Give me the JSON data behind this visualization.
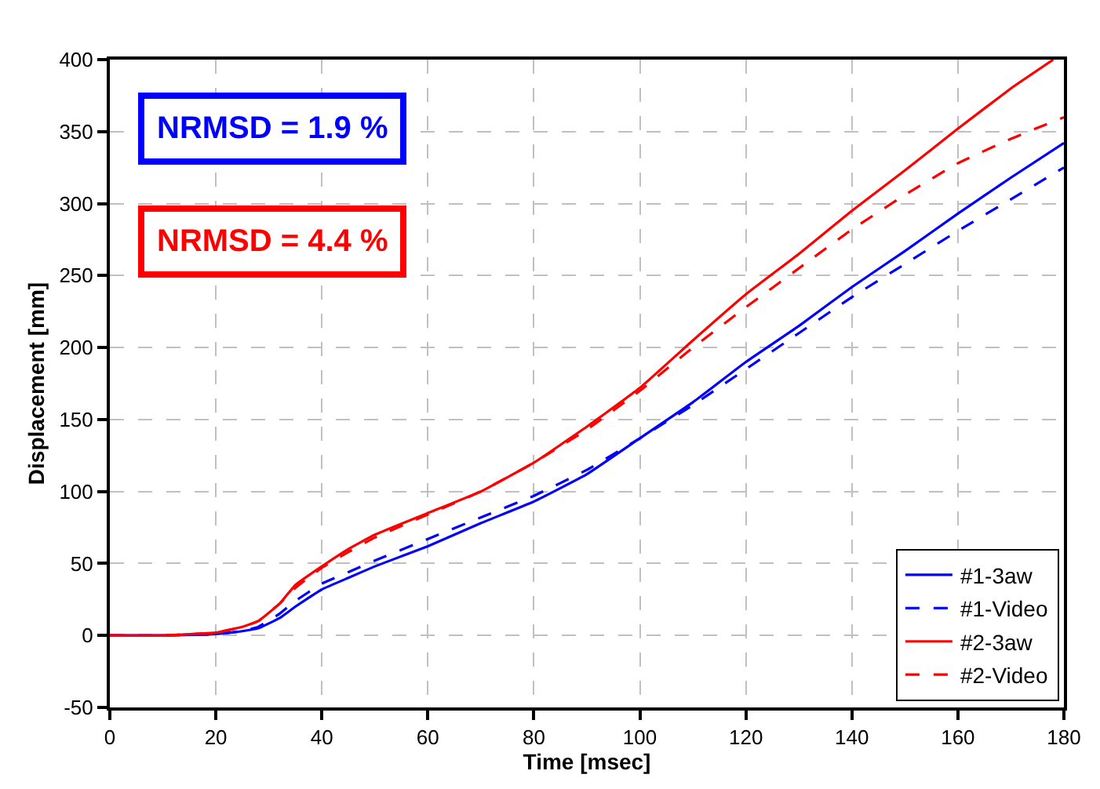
{
  "chart_data": {
    "type": "line",
    "xlabel": "Time [msec]",
    "ylabel": "Displacement [mm]",
    "xlim": [
      0,
      180
    ],
    "xticks": [
      0,
      20,
      40,
      60,
      80,
      100,
      120,
      140,
      160,
      180
    ],
    "ylim": [
      -50,
      400
    ],
    "yticks": [
      -50,
      0,
      50,
      100,
      150,
      200,
      250,
      300,
      350,
      400
    ],
    "grid": true,
    "legend": "bottom right",
    "annotations": [
      "NRMSD = 1.9 %",
      "NRMSD = 4.4 %"
    ],
    "series": [
      {
        "name": "#1-3aw",
        "color": "#0000ff",
        "line_style": "solid",
        "x": [
          0,
          10,
          20,
          25,
          28,
          32,
          35,
          40,
          45,
          50,
          60,
          70,
          80,
          90,
          100,
          110,
          120,
          130,
          140,
          150,
          160,
          170,
          180
        ],
        "values": [
          0,
          0,
          1,
          3,
          5,
          12,
          20,
          32,
          40,
          48,
          62,
          78,
          93,
          112,
          137,
          162,
          190,
          215,
          242,
          267,
          293,
          318,
          342
        ]
      },
      {
        "name": "#1-Video",
        "color": "#0000ff",
        "line_style": "dashed",
        "x": [
          0,
          10,
          20,
          25,
          28,
          32,
          35,
          40,
          45,
          50,
          60,
          70,
          80,
          90,
          100,
          110,
          120,
          130,
          140,
          150,
          160,
          170,
          180
        ],
        "values": [
          0,
          0,
          1,
          3,
          6,
          15,
          24,
          36,
          44,
          52,
          67,
          82,
          97,
          115,
          137,
          160,
          185,
          210,
          235,
          258,
          281,
          303,
          325
        ]
      },
      {
        "name": "#2-3aw",
        "color": "#ff0000",
        "line_style": "solid",
        "x": [
          0,
          10,
          20,
          25,
          28,
          32,
          35,
          40,
          45,
          50,
          60,
          70,
          80,
          90,
          100,
          110,
          120,
          130,
          140,
          150,
          160,
          170,
          178
        ],
        "values": [
          0,
          0,
          2,
          6,
          10,
          22,
          35,
          48,
          60,
          70,
          85,
          100,
          120,
          145,
          172,
          205,
          237,
          265,
          295,
          323,
          352,
          380,
          400
        ]
      },
      {
        "name": "#2-Video",
        "color": "#ff0000",
        "line_style": "dashed",
        "x": [
          0,
          10,
          20,
          25,
          28,
          32,
          35,
          40,
          45,
          50,
          60,
          70,
          80,
          90,
          100,
          110,
          120,
          130,
          140,
          150,
          160,
          170,
          180
        ],
        "values": [
          0,
          0,
          2,
          6,
          10,
          22,
          33,
          47,
          58,
          68,
          84,
          100,
          120,
          143,
          170,
          200,
          228,
          255,
          282,
          306,
          328,
          345,
          360
        ]
      }
    ]
  }
}
